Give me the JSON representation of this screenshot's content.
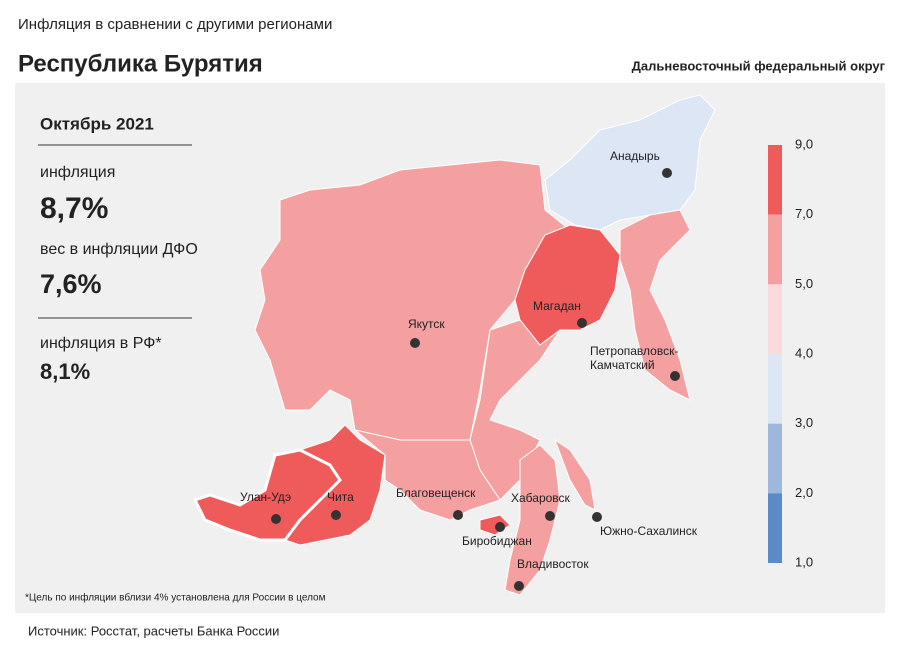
{
  "header": {
    "subtitle": "Инфляция  в сравнении  с другими  регионами",
    "title": "Республика Бурятия",
    "district": "Дальневосточный федеральный округ"
  },
  "info": {
    "period": "Октябрь 2021",
    "inflation_label": "инфляция",
    "inflation_value": "8,7%",
    "weight_label": "вес в инфляции ДФО",
    "weight_value": "7,6%",
    "russia_label": "инфляция  в РФ*",
    "russia_value": "8,1%"
  },
  "legend": {
    "labels": [
      "9,0",
      "7,0",
      "5,0",
      "4,0",
      "3,0",
      "2,0",
      "1,0"
    ],
    "colors": [
      "#ef5b5b",
      "#f4a0a0",
      "#fadadd",
      "#dde6f4",
      "#9db8dc",
      "#5b8bc6"
    ]
  },
  "cities": [
    "Анадырь",
    "Магадан",
    "Якутск",
    "Петропавловск-",
    "Камчатский",
    "Улан-Удэ",
    "Чита",
    "Благовещенск",
    "Хабаровск",
    "Биробиджан",
    "Южно-Сахалинск",
    "Владивосток"
  ],
  "footnote": "*Цель по инфляции вблизи 4% установлена для России в целом",
  "source": "Источник: Росстат, расчеты Банка России"
}
